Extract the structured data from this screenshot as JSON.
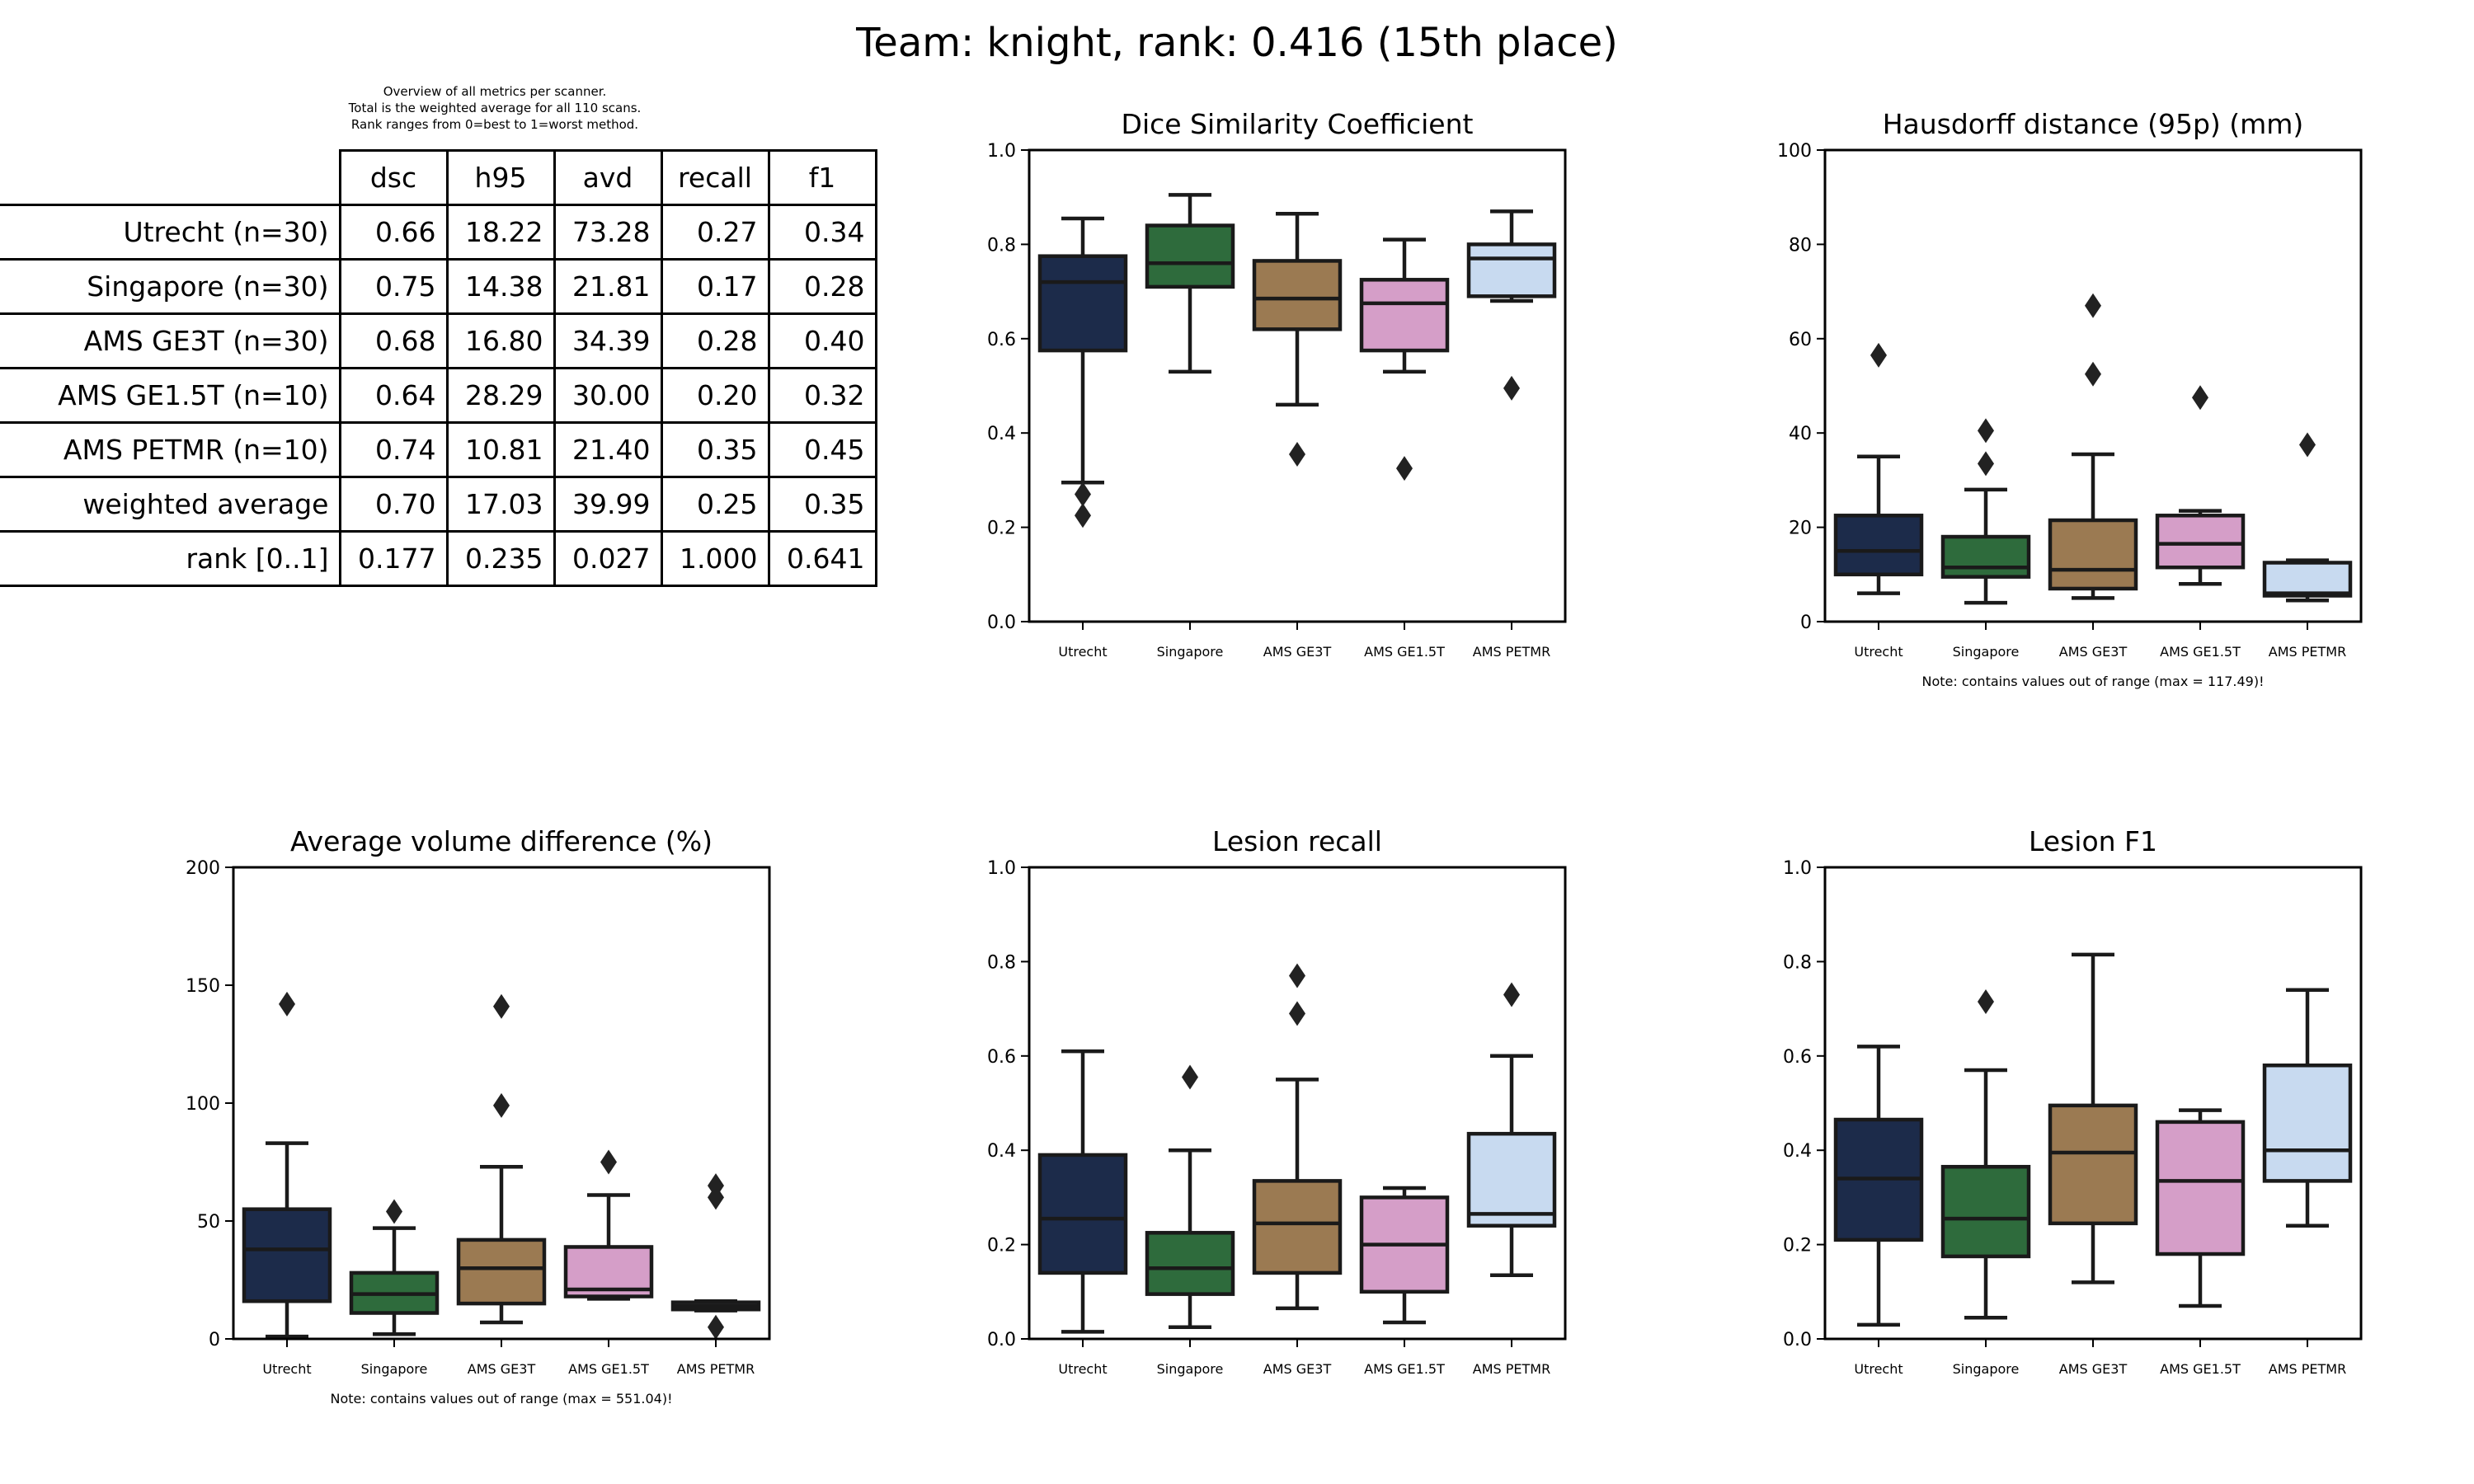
{
  "title": "Team: knight, rank: 0.416 (15th place)",
  "table": {
    "caption": [
      "Overview of all metrics per scanner.",
      "Total is the weighted average for all 110 scans.",
      "Rank ranges from 0=best to 1=worst method."
    ],
    "columns": [
      "dsc",
      "h95",
      "avd",
      "recall",
      "f1"
    ],
    "rows": [
      {
        "label": "Utrecht (n=30)",
        "values": [
          "0.66",
          "18.22",
          "73.28",
          "0.27",
          "0.34"
        ]
      },
      {
        "label": "Singapore (n=30)",
        "values": [
          "0.75",
          "14.38",
          "21.81",
          "0.17",
          "0.28"
        ]
      },
      {
        "label": "AMS GE3T (n=30)",
        "values": [
          "0.68",
          "16.80",
          "34.39",
          "0.28",
          "0.40"
        ]
      },
      {
        "label": "AMS GE1.5T (n=10)",
        "values": [
          "0.64",
          "28.29",
          "30.00",
          "0.20",
          "0.32"
        ]
      },
      {
        "label": "AMS PETMR (n=10)",
        "values": [
          "0.74",
          "10.81",
          "21.40",
          "0.35",
          "0.45"
        ]
      },
      {
        "label": "weighted average",
        "values": [
          "0.70",
          "17.03",
          "39.99",
          "0.25",
          "0.35"
        ]
      },
      {
        "label": "rank [0..1]",
        "values": [
          "0.177",
          "0.235",
          "0.027",
          "1.000",
          "0.641"
        ]
      }
    ]
  },
  "colors": [
    "#1c2b4a",
    "#2e6b3c",
    "#9b7a52",
    "#d59ec8",
    "#c8daf0"
  ],
  "chart_data": [
    {
      "type": "box",
      "title": "Dice Similarity Coefficient",
      "categories": [
        "Utrecht",
        "Singapore",
        "AMS GE3T",
        "AMS GE1.5T",
        "AMS PETMR"
      ],
      "ylim": [
        0,
        1.0
      ],
      "yticks": [
        "0.0",
        "0.2",
        "0.4",
        "0.6",
        "0.8",
        "1.0"
      ],
      "ytick_values": [
        0,
        0.2,
        0.4,
        0.6,
        0.8,
        1.0
      ],
      "note": "",
      "boxes": [
        {
          "whislo": 0.295,
          "q1": 0.575,
          "med": 0.72,
          "q3": 0.775,
          "whishi": 0.855,
          "fliers": [
            0.27,
            0.225
          ]
        },
        {
          "whislo": 0.53,
          "q1": 0.71,
          "med": 0.76,
          "q3": 0.84,
          "whishi": 0.905,
          "fliers": []
        },
        {
          "whislo": 0.46,
          "q1": 0.62,
          "med": 0.685,
          "q3": 0.765,
          "whishi": 0.865,
          "fliers": 0.355
        },
        {
          "whislo": 0.53,
          "q1": 0.575,
          "med": 0.675,
          "q3": 0.725,
          "whishi": 0.81,
          "fliers": [
            0.325
          ]
        },
        {
          "whislo": 0.68,
          "q1": 0.69,
          "med": 0.77,
          "q3": 0.8,
          "whishi": 0.87,
          "fliers": [
            0.495
          ]
        }
      ]
    },
    {
      "type": "box",
      "title": "Hausdorff distance (95p) (mm)",
      "categories": [
        "Utrecht",
        "Singapore",
        "AMS GE3T",
        "AMS GE1.5T",
        "AMS PETMR"
      ],
      "ylim": [
        0,
        100
      ],
      "yticks": [
        "0",
        "20",
        "40",
        "60",
        "80",
        "100"
      ],
      "ytick_values": [
        0,
        20,
        40,
        60,
        80,
        100
      ],
      "note": "Note: contains values out of range (max = 117.49)!",
      "boxes": [
        {
          "whislo": 6,
          "q1": 10,
          "med": 15,
          "q3": 22.5,
          "whishi": 35,
          "fliers": [
            56.5
          ]
        },
        {
          "whislo": 4,
          "q1": 9.5,
          "med": 11.5,
          "q3": 18,
          "whishi": 28,
          "fliers": [
            40.5,
            33.5
          ]
        },
        {
          "whislo": 5,
          "q1": 7,
          "med": 11,
          "q3": 21.5,
          "whishi": 35.5,
          "fliers": [
            67,
            52.5
          ]
        },
        {
          "whislo": 8,
          "q1": 11.5,
          "med": 16.5,
          "q3": 22.5,
          "whishi": 23.5,
          "fliers": [
            47.5
          ]
        },
        {
          "whislo": 4.5,
          "q1": 5.5,
          "med": 6,
          "q3": 12.5,
          "whishi": 13,
          "fliers": [
            37.5
          ]
        }
      ]
    },
    {
      "type": "box",
      "title": "Average volume difference (%)",
      "categories": [
        "Utrecht",
        "Singapore",
        "AMS GE3T",
        "AMS GE1.5T",
        "AMS PETMR"
      ],
      "ylim": [
        0,
        200
      ],
      "yticks": [
        "0",
        "50",
        "100",
        "150",
        "200"
      ],
      "ytick_values": [
        0,
        50,
        100,
        150,
        200
      ],
      "note": "Note: contains values out of range (max = 551.04)!",
      "boxes": [
        {
          "whislo": 1,
          "q1": 16,
          "med": 38,
          "q3": 55,
          "whishi": 83,
          "fliers": [
            142
          ]
        },
        {
          "whislo": 2,
          "q1": 11,
          "med": 19,
          "q3": 28,
          "whishi": 47,
          "fliers": [
            54
          ]
        },
        {
          "whislo": 7,
          "q1": 15,
          "med": 30,
          "q3": 42,
          "whishi": 73,
          "fliers": [
            141,
            99
          ]
        },
        {
          "whislo": 17,
          "q1": 18,
          "med": 21,
          "q3": 39,
          "whishi": 61,
          "fliers": [
            75
          ]
        },
        {
          "whislo": 12,
          "q1": 12.5,
          "med": 14,
          "q3": 15.5,
          "whishi": 16,
          "fliers": [
            65,
            60,
            5
          ]
        }
      ]
    },
    {
      "type": "box",
      "title": "Lesion recall",
      "categories": [
        "Utrecht",
        "Singapore",
        "AMS GE3T",
        "AMS GE1.5T",
        "AMS PETMR"
      ],
      "ylim": [
        0,
        1.0
      ],
      "yticks": [
        "0.0",
        "0.2",
        "0.4",
        "0.6",
        "0.8",
        "1.0"
      ],
      "ytick_values": [
        0,
        0.2,
        0.4,
        0.6,
        0.8,
        1.0
      ],
      "note": "",
      "boxes": [
        {
          "whislo": 0.015,
          "q1": 0.14,
          "med": 0.255,
          "q3": 0.39,
          "whishi": 0.61,
          "fliers": []
        },
        {
          "whislo": 0.025,
          "q1": 0.095,
          "med": 0.15,
          "q3": 0.225,
          "whishi": 0.4,
          "fliers": [
            0.555
          ]
        },
        {
          "whislo": 0.065,
          "q1": 0.14,
          "med": 0.245,
          "q3": 0.335,
          "whishi": 0.55,
          "fliers": [
            0.77,
            0.69
          ]
        },
        {
          "whislo": 0.035,
          "q1": 0.1,
          "med": 0.2,
          "q3": 0.3,
          "whishi": 0.32,
          "fliers": []
        },
        {
          "whislo": 0.135,
          "q1": 0.24,
          "med": 0.265,
          "q3": 0.435,
          "whishi": 0.6,
          "fliers": [
            0.73
          ]
        }
      ]
    },
    {
      "type": "box",
      "title": "Lesion F1",
      "categories": [
        "Utrecht",
        "Singapore",
        "AMS GE3T",
        "AMS GE1.5T",
        "AMS PETMR"
      ],
      "ylim": [
        0,
        1.0
      ],
      "yticks": [
        "0.0",
        "0.2",
        "0.4",
        "0.6",
        "0.8",
        "1.0"
      ],
      "ytick_values": [
        0,
        0.2,
        0.4,
        0.6,
        0.8,
        1.0
      ],
      "note": "",
      "boxes": [
        {
          "whislo": 0.03,
          "q1": 0.21,
          "med": 0.34,
          "q3": 0.465,
          "whishi": 0.62,
          "fliers": []
        },
        {
          "whislo": 0.045,
          "q1": 0.175,
          "med": 0.255,
          "q3": 0.365,
          "whishi": 0.57,
          "fliers": [
            0.715
          ]
        },
        {
          "whislo": 0.12,
          "q1": 0.245,
          "med": 0.395,
          "q3": 0.495,
          "whishi": 0.815,
          "fliers": []
        },
        {
          "whislo": 0.07,
          "q1": 0.18,
          "med": 0.335,
          "q3": 0.46,
          "whishi": 0.485,
          "fliers": []
        },
        {
          "whislo": 0.24,
          "q1": 0.335,
          "med": 0.4,
          "q3": 0.58,
          "whishi": 0.74,
          "fliers": []
        }
      ]
    }
  ]
}
